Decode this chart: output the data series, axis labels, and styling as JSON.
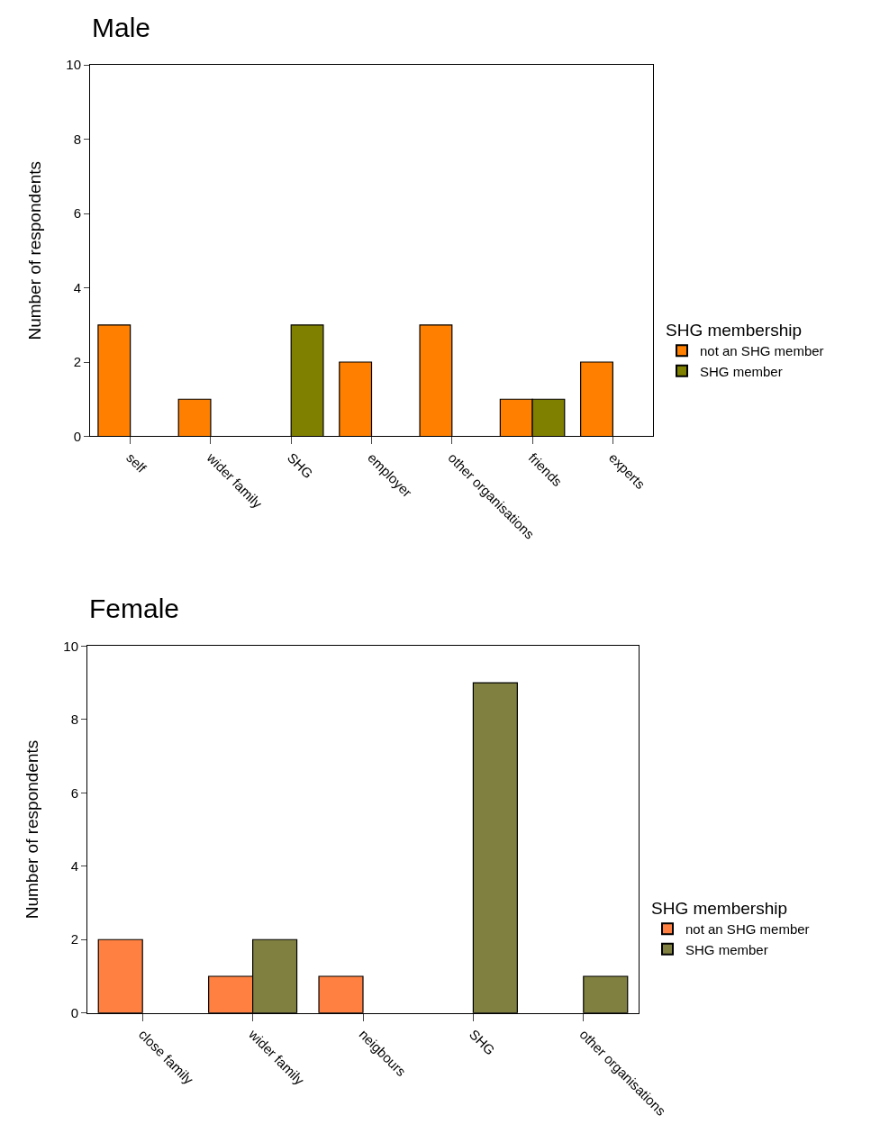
{
  "chart_data": [
    {
      "type": "bar",
      "title": "Male",
      "ylabel": "Number of respondents",
      "legend_title": "SHG membership",
      "categories": [
        "self",
        "wider family",
        "SHG",
        "employer",
        "other organisations",
        "friends",
        "experts"
      ],
      "series": [
        {
          "name": "not an SHG member",
          "color": "#ff8000",
          "values": [
            3,
            1,
            0,
            2,
            3,
            1,
            2
          ]
        },
        {
          "name": "SHG member",
          "color": "#808000",
          "values": [
            0,
            0,
            3,
            0,
            0,
            1,
            0
          ]
        }
      ],
      "ylim": [
        0,
        10
      ],
      "yticks": [
        0,
        2,
        4,
        6,
        8,
        10
      ],
      "legend": "right"
    },
    {
      "type": "bar",
      "title": "Female",
      "ylabel": "Number of respondents",
      "legend_title": "SHG membership",
      "categories": [
        "close family",
        "wider family",
        "neigbours",
        "SHG",
        "other organisations"
      ],
      "series": [
        {
          "name": "not an SHG member",
          "color": "#ff8040",
          "values": [
            2,
            1,
            1,
            0,
            0
          ]
        },
        {
          "name": "SHG member",
          "color": "#808040",
          "values": [
            0,
            2,
            0,
            9,
            1
          ]
        }
      ],
      "ylim": [
        0,
        10
      ],
      "yticks": [
        0,
        2,
        4,
        6,
        8,
        10
      ],
      "legend": "right"
    }
  ]
}
